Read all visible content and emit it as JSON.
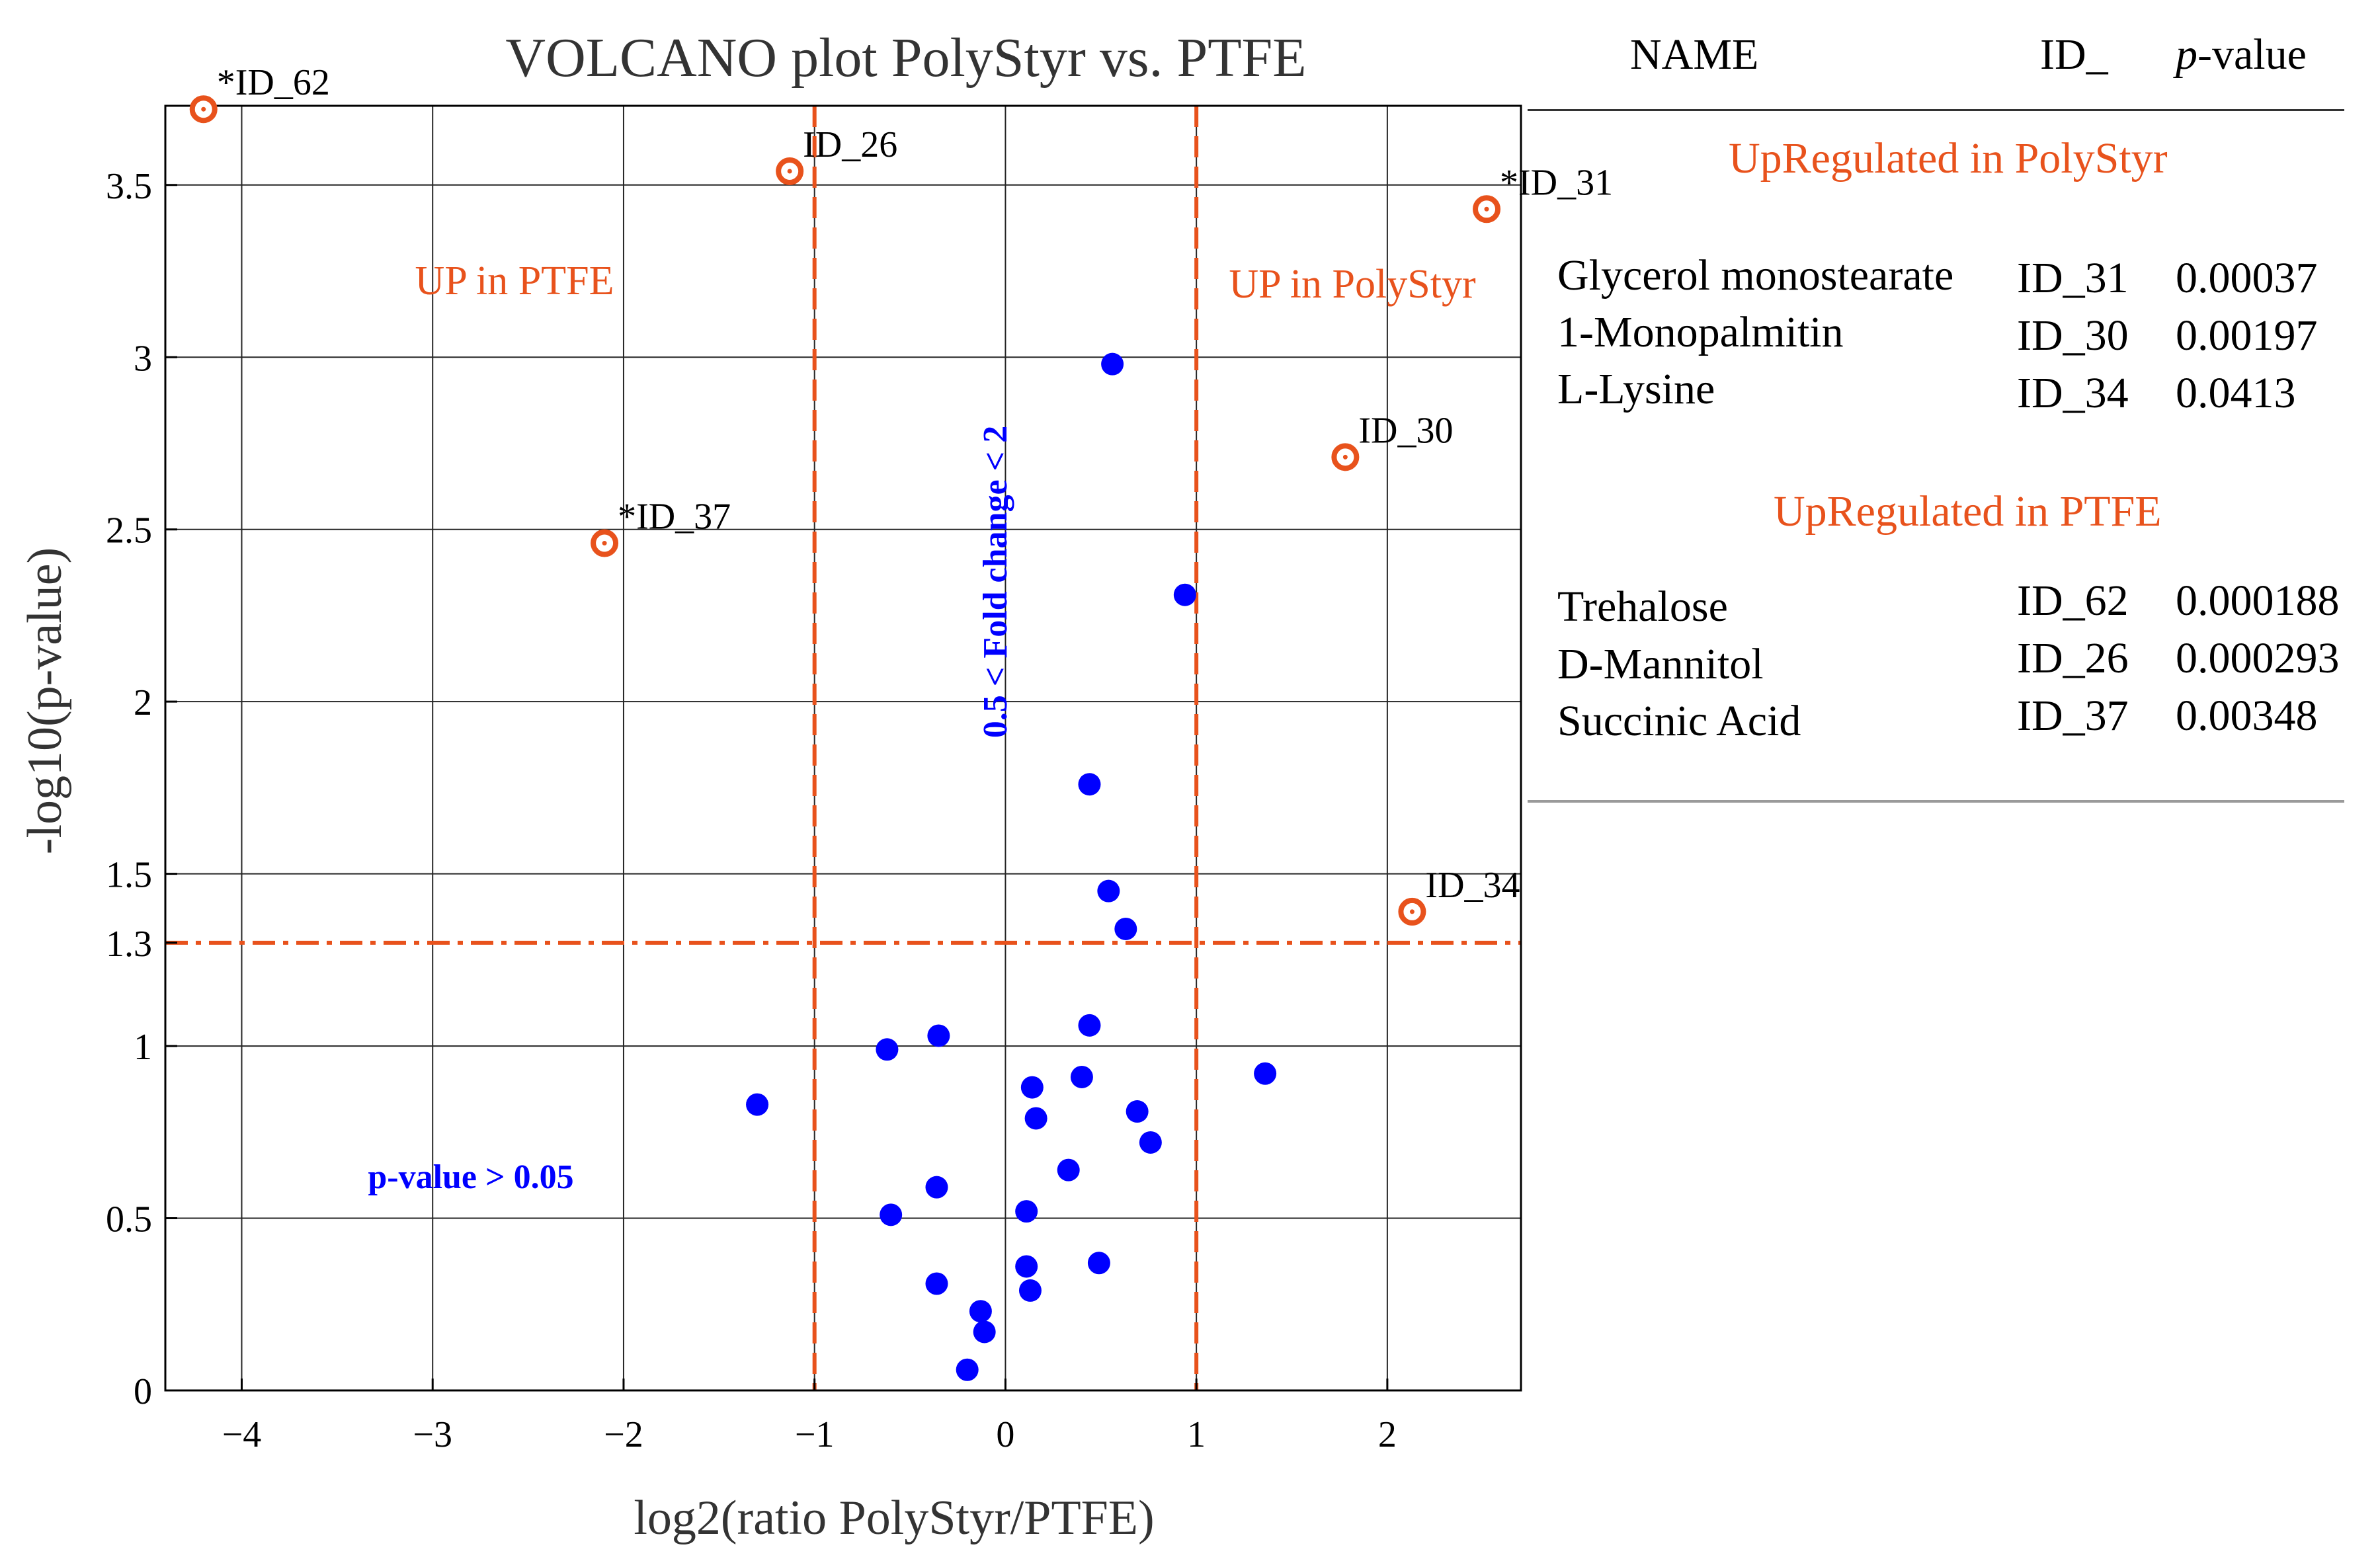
{
  "chart_data": {
    "type": "scatter",
    "title": "VOLCANO plot PolyStyr vs. PTFE",
    "xlabel": "log2(ratio PolyStyr/PTFE)",
    "ylabel": "-log10(p-value)",
    "xlim": [
      -4.4,
      2.7
    ],
    "ylim": [
      0,
      3.73
    ],
    "xticks": [
      -4,
      -3,
      -2,
      -1,
      0,
      1,
      2
    ],
    "xtick_labels": [
      "−4",
      "−3",
      "−2",
      "−1",
      "0",
      "1",
      "2"
    ],
    "yticks": [
      0,
      0.5,
      1,
      1.3,
      1.5,
      2,
      2.5,
      3,
      3.5
    ],
    "ytick_labels": [
      "0",
      "0.5",
      "1",
      "1.3",
      "1.5",
      "2",
      "2.5",
      "3",
      "3.5"
    ],
    "grid": true,
    "thresholds": {
      "fold_change_low": -1,
      "fold_change_high": 1,
      "p_value_line": 1.3
    },
    "annotations": {
      "up_ptfe": "UP in PTFE",
      "up_polystyr": "UP in PolyStyr",
      "fold_change": "0.5 < Fold change < 2",
      "p_value": "p-value > 0.05"
    },
    "highlighted": [
      {
        "label": "*ID_62",
        "x": -4.2,
        "y": 3.72
      },
      {
        "label": "ID_26",
        "x": -1.13,
        "y": 3.54
      },
      {
        "label": "*ID_31",
        "x": 2.52,
        "y": 3.43
      },
      {
        "label": "ID_30",
        "x": 1.78,
        "y": 2.71
      },
      {
        "label": "*ID_37",
        "x": -2.1,
        "y": 2.46
      },
      {
        "label": "ID_34",
        "x": 2.13,
        "y": 1.39
      }
    ],
    "others": [
      {
        "x": 0.56,
        "y": 2.98
      },
      {
        "x": 0.94,
        "y": 2.31
      },
      {
        "x": 0.44,
        "y": 1.76
      },
      {
        "x": 0.54,
        "y": 1.45
      },
      {
        "x": 0.63,
        "y": 1.34
      },
      {
        "x": 0.44,
        "y": 1.06
      },
      {
        "x": -0.35,
        "y": 1.03
      },
      {
        "x": -0.62,
        "y": 0.99
      },
      {
        "x": 1.36,
        "y": 0.92
      },
      {
        "x": 0.4,
        "y": 0.91
      },
      {
        "x": 0.14,
        "y": 0.88
      },
      {
        "x": -1.3,
        "y": 0.83
      },
      {
        "x": 0.69,
        "y": 0.81
      },
      {
        "x": 0.16,
        "y": 0.79
      },
      {
        "x": 0.76,
        "y": 0.72
      },
      {
        "x": 0.33,
        "y": 0.64
      },
      {
        "x": -0.36,
        "y": 0.59
      },
      {
        "x": 0.11,
        "y": 0.52
      },
      {
        "x": -0.6,
        "y": 0.51
      },
      {
        "x": 0.49,
        "y": 0.37
      },
      {
        "x": 0.11,
        "y": 0.36
      },
      {
        "x": -0.36,
        "y": 0.31
      },
      {
        "x": 0.13,
        "y": 0.29
      },
      {
        "x": -0.13,
        "y": 0.23
      },
      {
        "x": -0.11,
        "y": 0.17
      },
      {
        "x": -0.2,
        "y": 0.06
      }
    ],
    "colors": {
      "highlight": "#E8521C",
      "others": "#0000FF",
      "threshold": "#E8521C"
    }
  },
  "table": {
    "headers": {
      "name": "NAME",
      "id": "ID_",
      "pvalue_italic": "p",
      "pvalue_rest": "-value"
    },
    "groups": [
      {
        "title": "UpRegulated in PolyStyr",
        "rows": [
          {
            "name": "Glycerol monostearate",
            "id": "ID_31",
            "p": "0.00037"
          },
          {
            "name": "1-Monopalmitin",
            "id": "ID_30",
            "p": "0.00197"
          },
          {
            "name": "L-Lysine",
            "id": "ID_34",
            "p": "0.0413"
          }
        ]
      },
      {
        "title": "UpRegulated in PTFE",
        "rows": [
          {
            "name": "Trehalose",
            "id": "ID_62",
            "p": "0.000188"
          },
          {
            "name": "D-Mannitol",
            "id": "ID_26",
            "p": "0.000293"
          },
          {
            "name": "Succinic Acid",
            "id": "ID_37",
            "p": "0.00348"
          }
        ]
      }
    ]
  }
}
